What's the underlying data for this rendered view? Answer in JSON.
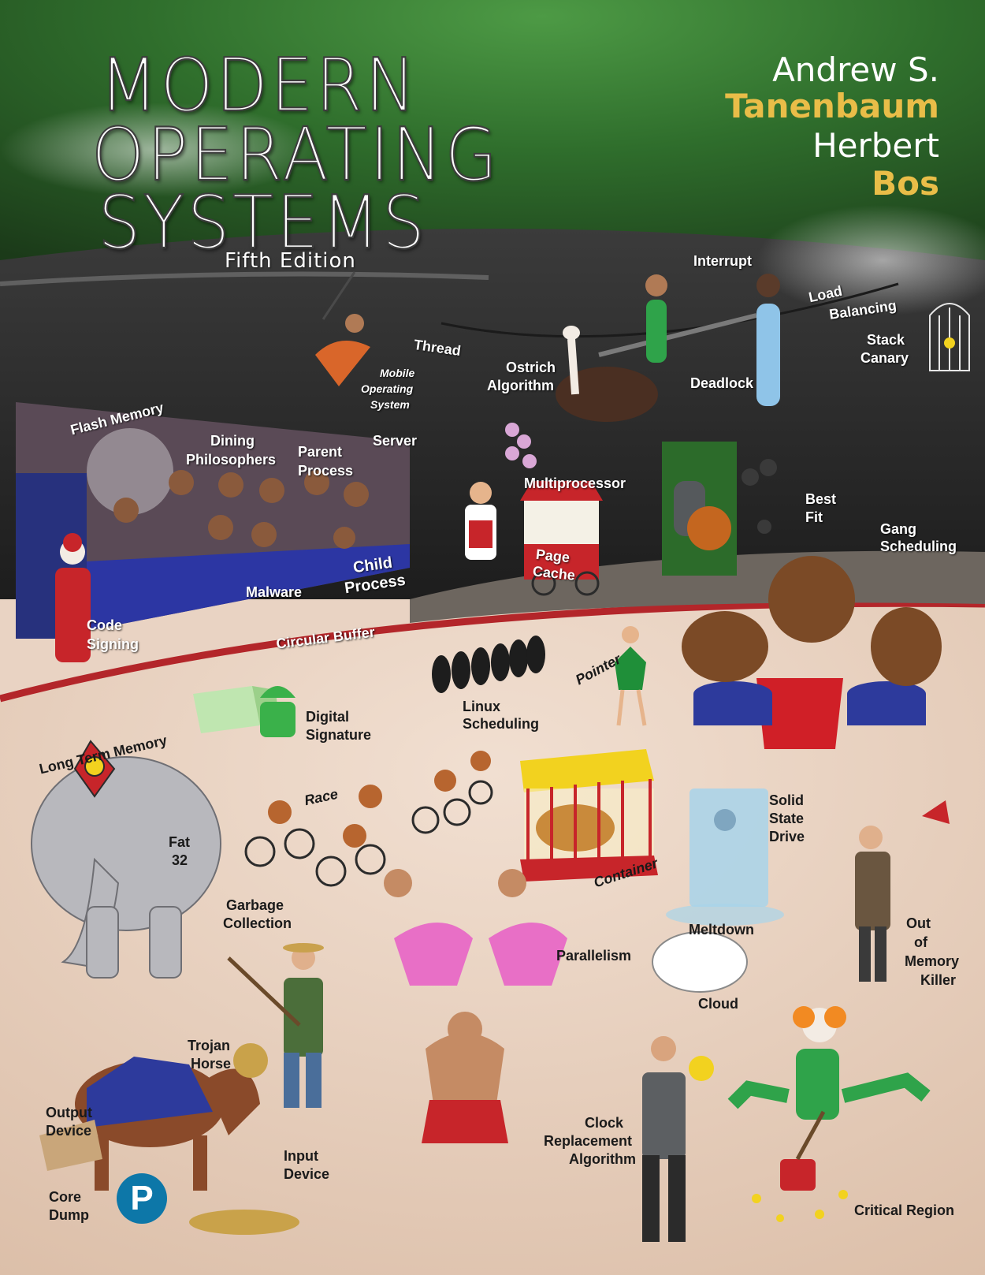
{
  "cover": {
    "title_lines": [
      "MODERN",
      "OPERATING",
      "SYSTEMS"
    ],
    "edition": "Fifth Edition",
    "authors": [
      {
        "first": "Andrew S.",
        "last": "Tanenbaum"
      },
      {
        "first": "Herbert",
        "last": "Bos"
      }
    ],
    "publisher_logo_letter": "P",
    "colors": {
      "title_band": "#3f8a3b",
      "author_last_name": "#e9bd48",
      "arena_floor": "#e9d3c3",
      "ring_edge": "#b3262a",
      "publisher_blue": "#0d77a8"
    }
  },
  "labels": {
    "interrupt": "Interrupt",
    "load_balancing": [
      "Load",
      "Balancing"
    ],
    "stack_canary": [
      "Stack",
      "Canary"
    ],
    "thread": "Thread",
    "mobile_os": [
      "Mobile",
      "Operating",
      "System"
    ],
    "ostrich_algorithm": [
      "Ostrich",
      "Algorithm"
    ],
    "deadlock": "Deadlock",
    "flash_memory": "Flash Memory",
    "dining_philosophers": [
      "Dining",
      "Philosophers"
    ],
    "parent_process": [
      "Parent",
      "Process"
    ],
    "server": "Server",
    "multiprocessor": "Multiprocessor",
    "best_fit": [
      "Best",
      "Fit"
    ],
    "gang_scheduling": [
      "Gang",
      "Scheduling"
    ],
    "page_cache": [
      "Page",
      "Cache"
    ],
    "child_process": [
      "Child",
      "Process"
    ],
    "malware": "Malware",
    "code_signing": [
      "Code",
      "Signing"
    ],
    "circular_buffer": "Circular Buffer",
    "pointer": "Pointer",
    "linux_scheduling": [
      "Linux",
      "Scheduling"
    ],
    "digital_signature": [
      "Digital",
      "Signature"
    ],
    "long_term_memory": "Long Term Memory",
    "fat32": [
      "Fat",
      "32"
    ],
    "race": "Race",
    "solid_state_drive": [
      "Solid",
      "State",
      "Drive"
    ],
    "container": "Container",
    "meltdown": "Meltdown",
    "garbage_collection": [
      "Garbage",
      "Collection"
    ],
    "parallelism": "Parallelism",
    "out_of_memory_killer": [
      "Out",
      "of",
      "Memory",
      "Killer"
    ],
    "cloud": "Cloud",
    "trojan_horse": [
      "Trojan",
      "Horse"
    ],
    "output_device": [
      "Output",
      "Device"
    ],
    "input_device": [
      "Input",
      "Device"
    ],
    "core_dump": [
      "Core",
      "Dump"
    ],
    "clock_replacement": [
      "Clock",
      "Replacement",
      "Algorithm"
    ],
    "critical_region": "Critical Region"
  }
}
